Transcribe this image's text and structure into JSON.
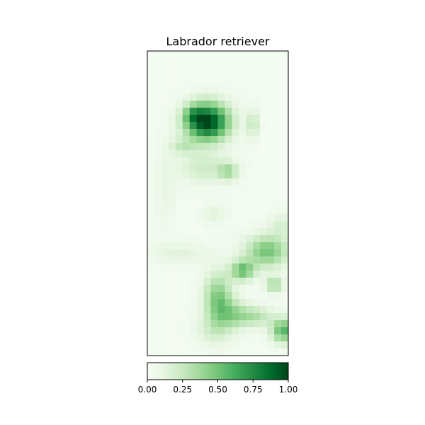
{
  "chart_data": {
    "type": "heatmap",
    "title": "Labrador retriever",
    "colormap": "Greens",
    "color_range": [
      0.0,
      1.0
    ],
    "colorbar": {
      "orientation": "horizontal",
      "placement": "bottom",
      "ticks": [
        0.0,
        0.25,
        0.5,
        0.75,
        1.0
      ],
      "tick_labels": [
        "0.00",
        "0.25",
        "0.50",
        "0.75",
        "1.00"
      ]
    },
    "axes": {
      "xticks": [],
      "yticks": []
    },
    "grid": {
      "rows": 43,
      "cols": 20
    },
    "hotspots": [
      {
        "row": 9.5,
        "col": 8.0,
        "row_spread": 1.9,
        "col_spread": 2.2,
        "value": 1.0
      },
      {
        "row": 8.5,
        "col": 6.0,
        "row_spread": 0.9,
        "col_spread": 0.9,
        "value": 0.25
      },
      {
        "row": 13.0,
        "col": 4.5,
        "row_spread": 0.8,
        "col_spread": 1.4,
        "value": 0.2
      },
      {
        "row": 9.8,
        "col": 14.5,
        "row_spread": 1.4,
        "col_spread": 0.6,
        "value": 0.25
      },
      {
        "row": 16.0,
        "col": 7.5,
        "row_spread": 1.6,
        "col_spread": 2.6,
        "value": 0.2
      },
      {
        "row": 16.5,
        "col": 11.0,
        "row_spread": 0.9,
        "col_spread": 1.0,
        "value": 0.3
      },
      {
        "row": 34.5,
        "col": 9.5,
        "row_spread": 2.6,
        "col_spread": 1.4,
        "value": 0.45
      },
      {
        "row": 30.5,
        "col": 13.0,
        "row_spread": 1.0,
        "col_spread": 1.2,
        "value": 0.5
      },
      {
        "row": 27.8,
        "col": 16.5,
        "row_spread": 1.6,
        "col_spread": 2.2,
        "value": 0.48
      },
      {
        "row": 32.5,
        "col": 17.5,
        "row_spread": 0.8,
        "col_spread": 0.9,
        "value": 0.35
      },
      {
        "row": 39.0,
        "col": 18.8,
        "row_spread": 1.2,
        "col_spread": 1.2,
        "value": 0.55
      },
      {
        "row": 37.0,
        "col": 14.5,
        "row_spread": 1.0,
        "col_spread": 2.0,
        "value": 0.3
      },
      {
        "row": 36.5,
        "col": 11.5,
        "row_spread": 1.5,
        "col_spread": 1.5,
        "value": 0.25
      },
      {
        "row": 22.5,
        "col": 9.0,
        "row_spread": 1.0,
        "col_spread": 1.2,
        "value": 0.12
      },
      {
        "row": 28.0,
        "col": 4.0,
        "row_spread": 1.0,
        "col_spread": 3.0,
        "value": 0.12
      },
      {
        "row": 24.0,
        "col": 18.5,
        "row_spread": 1.2,
        "col_spread": 1.2,
        "value": 0.15
      },
      {
        "row": 39.0,
        "col": 9.0,
        "row_spread": 1.5,
        "col_spread": 2.0,
        "value": 0.15
      },
      {
        "row": 19.0,
        "col": 2.0,
        "row_spread": 4.0,
        "col_spread": 1.0,
        "value": 0.08
      }
    ]
  }
}
